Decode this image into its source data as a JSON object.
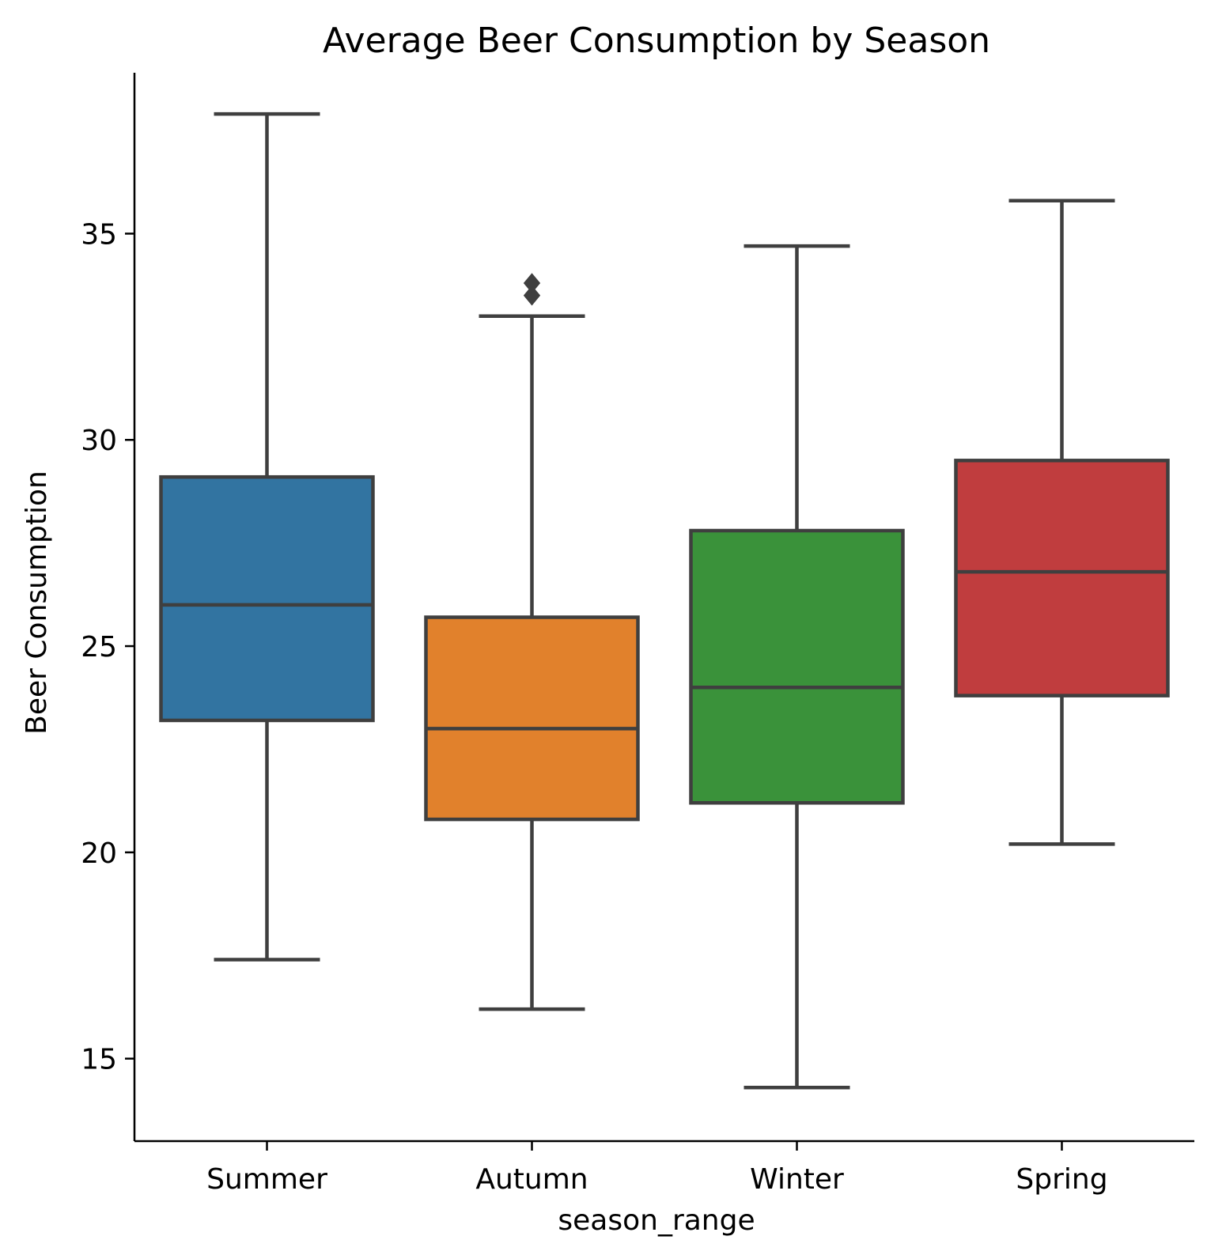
{
  "chart_data": {
    "type": "box",
    "title": "Average Beer Consumption by Season",
    "xlabel": "season_range",
    "ylabel": "Beer Consumption",
    "categories": [
      "Summer",
      "Autumn",
      "Winter",
      "Spring"
    ],
    "ylim": [
      13.0,
      38.9
    ],
    "yticks": [
      15,
      20,
      25,
      30,
      35
    ],
    "grid": false,
    "series": [
      {
        "category": "Summer",
        "whisker_low": 17.4,
        "q1": 23.2,
        "median": 26.0,
        "q3": 29.1,
        "whisker_high": 37.9,
        "outliers": [],
        "color": "#3274a1"
      },
      {
        "category": "Autumn",
        "whisker_low": 16.2,
        "q1": 20.8,
        "median": 23.0,
        "q3": 25.7,
        "whisker_high": 33.0,
        "outliers": [
          33.5,
          33.8
        ],
        "color": "#e1812c"
      },
      {
        "category": "Winter",
        "whisker_low": 14.3,
        "q1": 21.2,
        "median": 24.0,
        "q3": 27.8,
        "whisker_high": 34.7,
        "outliers": [],
        "color": "#3a923a"
      },
      {
        "category": "Spring",
        "whisker_low": 20.2,
        "q1": 23.8,
        "median": 26.8,
        "q3": 29.5,
        "whisker_high": 35.8,
        "outliers": [],
        "color": "#c03d3e"
      }
    ],
    "line_color": "#3f3f3f"
  }
}
